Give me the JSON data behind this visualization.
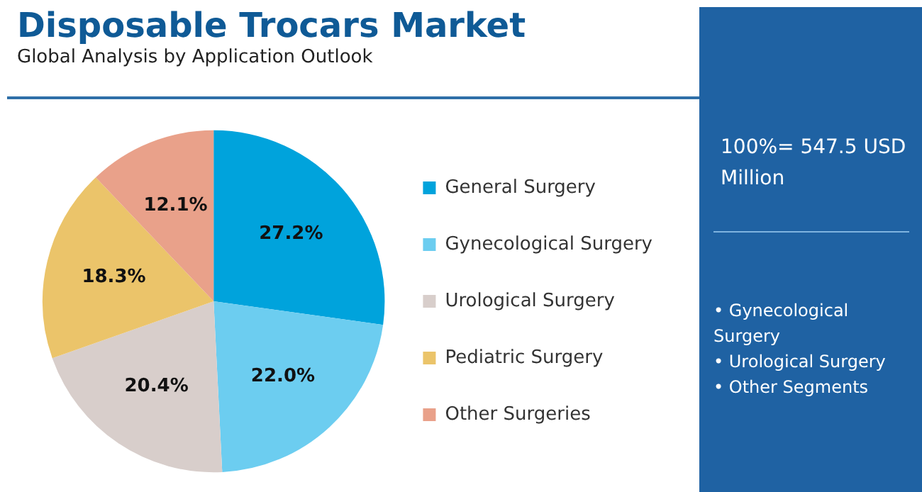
{
  "chart_data": {
    "type": "pie",
    "title": "Disposable Trocars Market",
    "subtitle": "Global Analysis by Application Outlook",
    "categories": [
      "General Surgery",
      "Gynecological Surgery",
      "Urological Surgery",
      "Pediatric Surgery",
      "Other Surgeries"
    ],
    "values": [
      27.2,
      22.0,
      20.4,
      18.3,
      12.1
    ],
    "colors": [
      "#00a3dc",
      "#6ccdf0",
      "#d8cecb",
      "#ebc46a",
      "#e9a18a"
    ],
    "value_labels": [
      "27.2%",
      "22.0%",
      "20.4%",
      "18.3%",
      "12.1%"
    ],
    "legend": "right",
    "annotations": [
      "100%= 547.5 USD Million",
      "• Gynecological Surgery",
      "• Urological Surgery",
      "• Other Segments"
    ]
  }
}
